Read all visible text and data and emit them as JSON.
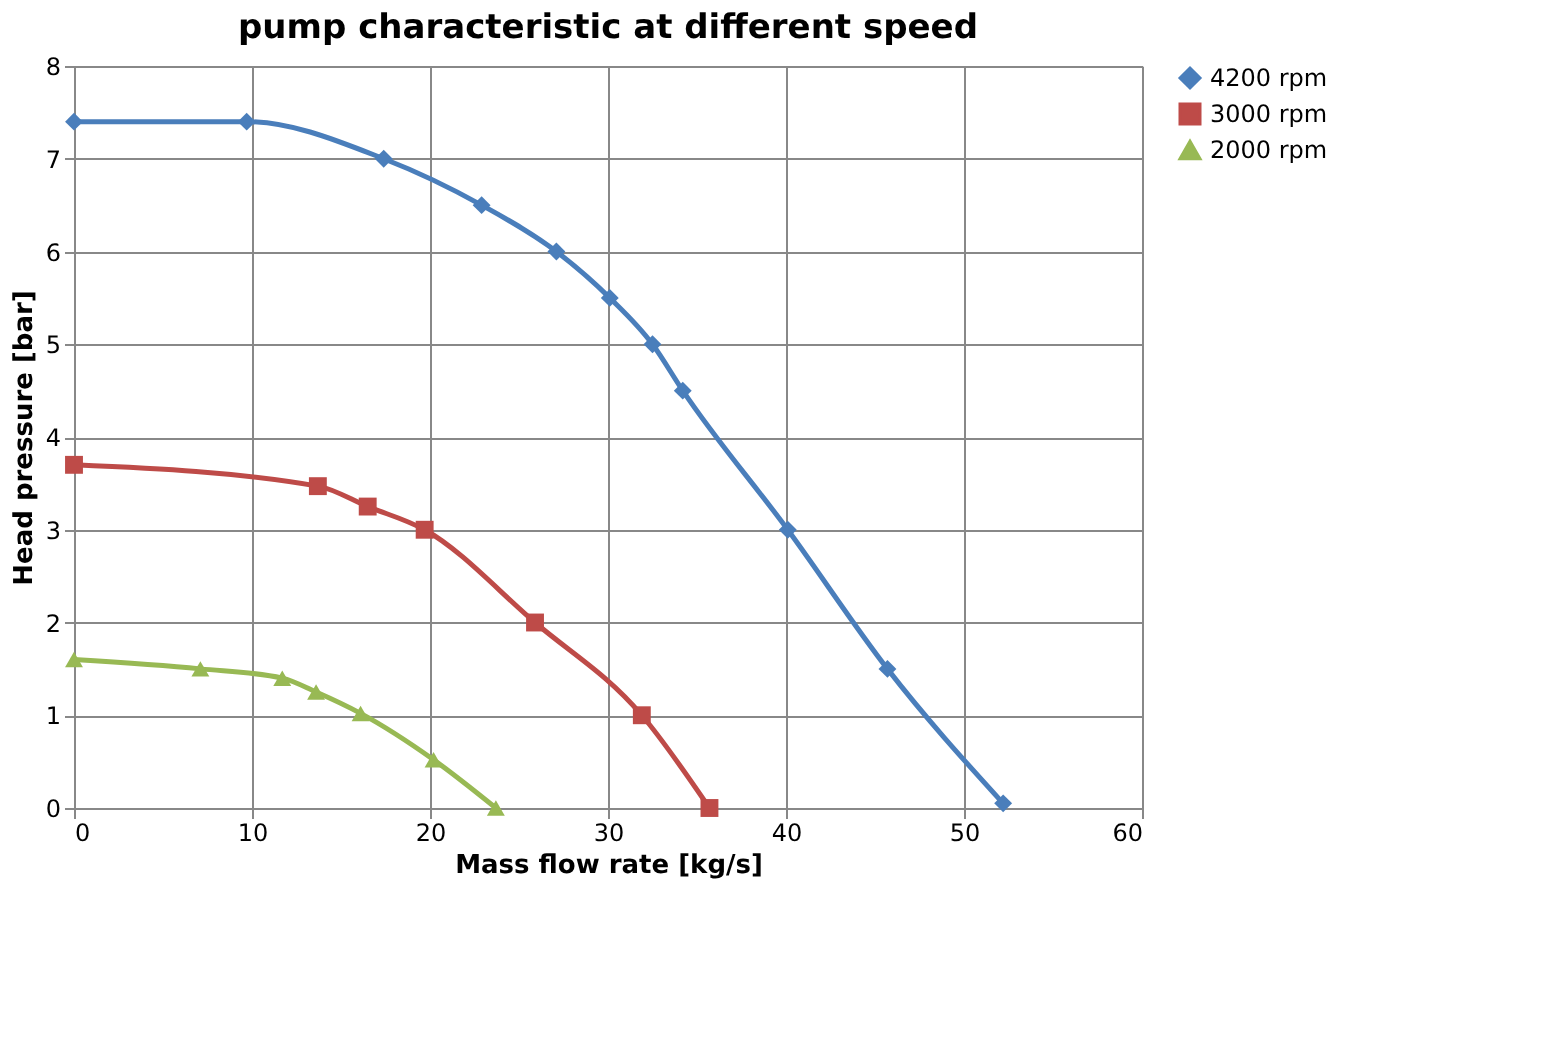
{
  "chart_data": {
    "type": "line",
    "title": "pump characteristic at different speed",
    "xlabel": "Mass flow rate [kg/s]",
    "ylabel": "Head pressure [bar]",
    "xlim": [
      0,
      60
    ],
    "xticks": [
      0,
      10,
      20,
      30,
      40,
      50,
      60
    ],
    "ylim": [
      0,
      8
    ],
    "yticks": [
      0,
      1,
      2,
      3,
      4,
      5,
      6,
      7,
      8
    ],
    "grid": true,
    "legend": "right",
    "series": [
      {
        "name": "4200 rpm",
        "color": "#4a7ebb",
        "marker": "diamond",
        "x": [
          0,
          9.7,
          17.4,
          22.9,
          27.1,
          30.1,
          32.5,
          34.2,
          40.1,
          45.7,
          52.2
        ],
        "values": [
          7.4,
          7.4,
          7.0,
          6.5,
          6.0,
          5.5,
          5.0,
          4.5,
          3.0,
          1.5,
          0.05
        ]
      },
      {
        "name": "3000 rpm",
        "color": "#be4b48",
        "marker": "square",
        "x": [
          0,
          13.7,
          16.5,
          19.7,
          25.9,
          31.9,
          35.7
        ],
        "values": [
          3.7,
          3.47,
          3.25,
          3.0,
          2.0,
          1.0,
          0
        ]
      },
      {
        "name": "2000 rpm",
        "color": "#98b954",
        "marker": "triangle",
        "x": [
          0,
          7.1,
          11.7,
          13.6,
          16.1,
          20.2,
          23.7
        ],
        "values": [
          1.6,
          1.5,
          1.4,
          1.25,
          1.02,
          0.52,
          0
        ]
      }
    ]
  }
}
